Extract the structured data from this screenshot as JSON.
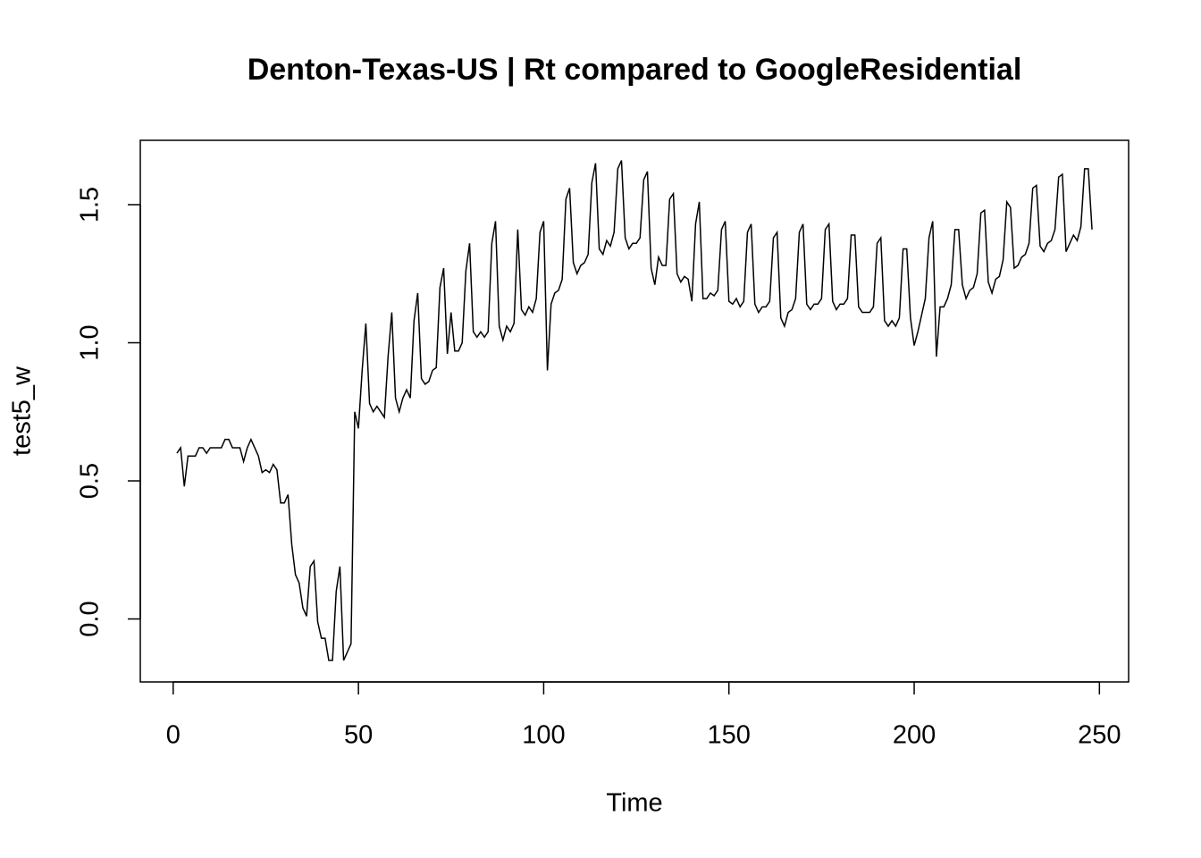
{
  "chart_data": {
    "type": "line",
    "title": "Denton-Texas-US | Rt compared to GoogleResidential",
    "xlabel": "Time",
    "ylabel": "test5_w",
    "color": "#000000",
    "xlim": [
      -8.88,
      257.88
    ],
    "ylim": [
      -0.228,
      1.733
    ],
    "xticks": [
      0,
      50,
      100,
      150,
      200,
      250
    ],
    "yticks": [
      {
        "value": 0,
        "label": "0.0"
      },
      0.5,
      {
        "value": 1,
        "label": "1.0"
      },
      1.5
    ],
    "x": [
      1,
      2,
      3,
      4,
      5,
      6,
      7,
      8,
      9,
      10,
      11,
      12,
      13,
      14,
      15,
      16,
      17,
      18,
      19,
      20,
      21,
      22,
      23,
      24,
      25,
      26,
      27,
      28,
      29,
      30,
      31,
      32,
      33,
      34,
      35,
      36,
      37,
      38,
      39,
      40,
      41,
      42,
      43,
      44,
      45,
      46,
      47,
      48,
      49,
      50,
      51,
      52,
      53,
      54,
      55,
      56,
      57,
      58,
      59,
      60,
      61,
      62,
      63,
      64,
      65,
      66,
      67,
      68,
      69,
      70,
      71,
      72,
      73,
      74,
      75,
      76,
      77,
      78,
      79,
      80,
      81,
      82,
      83,
      84,
      85,
      86,
      87,
      88,
      89,
      90,
      91,
      92,
      93,
      94,
      95,
      96,
      97,
      98,
      99,
      100,
      101,
      102,
      103,
      104,
      105,
      106,
      107,
      108,
      109,
      110,
      111,
      112,
      113,
      114,
      115,
      116,
      117,
      118,
      119,
      120,
      121,
      122,
      123,
      124,
      125,
      126,
      127,
      128,
      129,
      130,
      131,
      132,
      133,
      134,
      135,
      136,
      137,
      138,
      139,
      140,
      141,
      142,
      143,
      144,
      145,
      146,
      147,
      148,
      149,
      150,
      151,
      152,
      153,
      154,
      155,
      156,
      157,
      158,
      159,
      160,
      161,
      162,
      163,
      164,
      165,
      166,
      167,
      168,
      169,
      170,
      171,
      172,
      173,
      174,
      175,
      176,
      177,
      178,
      179,
      180,
      181,
      182,
      183,
      184,
      185,
      186,
      187,
      188,
      189,
      190,
      191,
      192,
      193,
      194,
      195,
      196,
      197,
      198,
      199,
      200,
      201,
      202,
      203,
      204,
      205,
      206,
      207,
      208,
      209,
      210,
      211,
      212,
      213,
      214,
      215,
      216,
      217,
      218,
      219,
      220,
      221,
      222,
      223,
      224,
      225,
      226,
      227,
      228,
      229,
      230,
      231,
      232,
      233,
      234,
      235,
      236,
      237,
      238,
      239,
      240,
      241,
      242,
      243,
      244,
      245,
      246,
      247,
      248
    ],
    "values": [
      0.6,
      0.62,
      0.48,
      0.59,
      0.59,
      0.59,
      0.62,
      0.62,
      0.6,
      0.62,
      0.62,
      0.62,
      0.62,
      0.65,
      0.65,
      0.62,
      0.62,
      0.62,
      0.57,
      0.62,
      0.65,
      0.62,
      0.59,
      0.53,
      0.54,
      0.53,
      0.56,
      0.54,
      0.42,
      0.42,
      0.45,
      0.27,
      0.16,
      0.13,
      0.04,
      0.01,
      0.19,
      0.21,
      -0.01,
      -0.07,
      -0.07,
      -0.15,
      -0.15,
      0.1,
      0.19,
      -0.15,
      -0.12,
      -0.09,
      0.75,
      0.69,
      0.9,
      1.07,
      0.78,
      0.75,
      0.77,
      0.75,
      0.73,
      0.95,
      1.11,
      0.8,
      0.75,
      0.8,
      0.83,
      0.8,
      1.08,
      1.18,
      0.87,
      0.85,
      0.86,
      0.9,
      0.91,
      1.2,
      1.27,
      0.96,
      1.11,
      0.97,
      0.97,
      1.0,
      1.26,
      1.36,
      1.04,
      1.02,
      1.04,
      1.02,
      1.04,
      1.36,
      1.44,
      1.06,
      1.01,
      1.06,
      1.04,
      1.07,
      1.41,
      1.12,
      1.1,
      1.13,
      1.11,
      1.16,
      1.4,
      1.44,
      0.9,
      1.14,
      1.18,
      1.19,
      1.23,
      1.52,
      1.56,
      1.29,
      1.25,
      1.28,
      1.29,
      1.32,
      1.58,
      1.65,
      1.34,
      1.32,
      1.37,
      1.35,
      1.4,
      1.63,
      1.66,
      1.38,
      1.34,
      1.36,
      1.36,
      1.38,
      1.59,
      1.62,
      1.27,
      1.21,
      1.31,
      1.28,
      1.28,
      1.52,
      1.54,
      1.25,
      1.22,
      1.24,
      1.23,
      1.15,
      1.43,
      1.51,
      1.16,
      1.16,
      1.18,
      1.17,
      1.19,
      1.41,
      1.44,
      1.15,
      1.14,
      1.16,
      1.13,
      1.15,
      1.4,
      1.43,
      1.14,
      1.11,
      1.13,
      1.13,
      1.15,
      1.38,
      1.4,
      1.09,
      1.06,
      1.11,
      1.12,
      1.16,
      1.4,
      1.43,
      1.14,
      1.12,
      1.14,
      1.14,
      1.16,
      1.41,
      1.43,
      1.15,
      1.12,
      1.14,
      1.14,
      1.16,
      1.39,
      1.39,
      1.13,
      1.11,
      1.11,
      1.11,
      1.13,
      1.36,
      1.38,
      1.08,
      1.06,
      1.08,
      1.06,
      1.09,
      1.34,
      1.34,
      1.09,
      0.99,
      1.04,
      1.1,
      1.16,
      1.38,
      1.44,
      0.95,
      1.13,
      1.13,
      1.16,
      1.21,
      1.41,
      1.41,
      1.21,
      1.16,
      1.19,
      1.2,
      1.25,
      1.47,
      1.48,
      1.22,
      1.18,
      1.23,
      1.24,
      1.3,
      1.51,
      1.49,
      1.27,
      1.28,
      1.31,
      1.32,
      1.36,
      1.56,
      1.57,
      1.35,
      1.33,
      1.36,
      1.37,
      1.41,
      1.6,
      1.61,
      1.33,
      1.36,
      1.39,
      1.37,
      1.42,
      1.63,
      1.63,
      1.41
    ]
  }
}
